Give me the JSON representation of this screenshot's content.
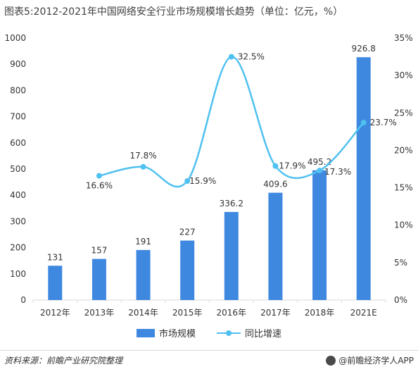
{
  "title": "图表5:2012-2021年中国网络安全行业市场规模增长趋势（单位：亿元，%）",
  "colors": {
    "bar": "#3f88e0",
    "line": "#4fc1f0"
  },
  "chart_data": {
    "type": "bar",
    "categories": [
      "2012年",
      "2013年",
      "2014年",
      "2015年",
      "2016年",
      "2017年",
      "2018年",
      "2021E"
    ],
    "series": [
      {
        "name": "市场规模",
        "type": "bar",
        "axis": "left",
        "values": [
          131,
          157,
          191,
          227,
          336.2,
          409.6,
          495.2,
          926.8
        ],
        "labels": [
          "131",
          "157",
          "191",
          "227",
          "336.2",
          "409.6",
          "495.2",
          "926.8"
        ]
      },
      {
        "name": "同比增速",
        "type": "line",
        "axis": "right",
        "values": [
          null,
          16.6,
          17.8,
          15.9,
          32.5,
          17.9,
          17.3,
          23.7
        ],
        "labels": [
          "",
          "16.6%",
          "17.8%",
          "15.9%",
          "32.5%",
          "17.9%",
          "17.3%",
          "23.7%"
        ]
      }
    ],
    "y_left": {
      "min": 0,
      "max": 1000,
      "ticks": [
        "0",
        "100",
        "200",
        "300",
        "400",
        "500",
        "600",
        "700",
        "800",
        "900",
        "1000"
      ]
    },
    "y_right": {
      "min": 0,
      "max": 35,
      "ticks": [
        "0%",
        "5%",
        "10%",
        "15%",
        "20%",
        "25%",
        "30%",
        "35%"
      ]
    },
    "legend_position": "bottom"
  },
  "footer": {
    "source": "资料来源：前瞻产业研究院整理",
    "brand": "@前瞻经济学人APP"
  }
}
